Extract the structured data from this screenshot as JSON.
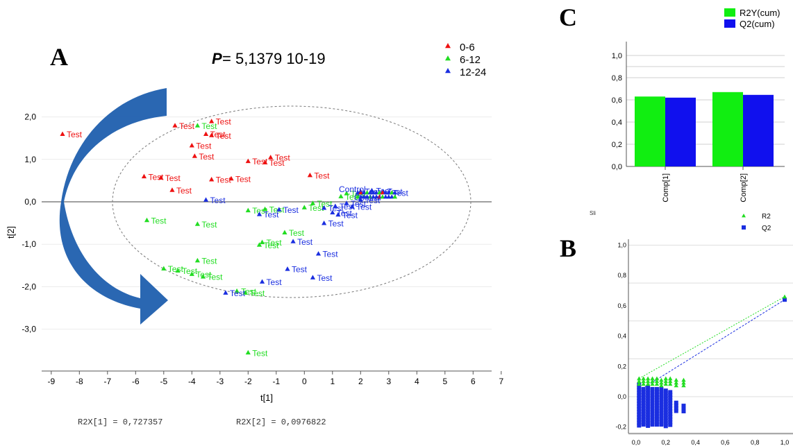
{
  "panels": {
    "A": {
      "letter": "A",
      "p_label": "P",
      "p_value": "= 5,1379 10-19",
      "legend": [
        {
          "label": "0-6",
          "color": "#ee1111"
        },
        {
          "label": "6-12",
          "color": "#22dd22"
        },
        {
          "label": "12-24",
          "color": "#1a2ee0"
        }
      ],
      "xlabel": "t[1]",
      "ylabel": "t[2]",
      "xticks": [
        "-9",
        "-8",
        "-7",
        "-6",
        "-5",
        "-4",
        "-3",
        "-2",
        "-1",
        "0",
        "1",
        "2",
        "3",
        "4",
        "5",
        "6",
        "7"
      ],
      "yticks": [
        "2,0",
        "1,0",
        "0,0",
        "-1,0",
        "-2,0",
        "-3,0"
      ],
      "footer_left": "R2X[1] = 0,727357",
      "footer_right": "R2X[2] = 0,0976822",
      "point_label": "Test",
      "cluster_labels": [
        "Control",
        "Control"
      ]
    },
    "B": {
      "letter": "B",
      "corner": "Sli",
      "legend": [
        {
          "label": "R2",
          "color": "#22dd22"
        },
        {
          "label": "Q2",
          "color": "#1a2ee0"
        }
      ],
      "xticks": [
        "0,0",
        "0,2",
        "0,4",
        "0,6",
        "0,8",
        "1,0"
      ],
      "yticks": [
        "1,0",
        "0,8",
        "0,6",
        "0,4",
        "0,2",
        "0,0",
        "-0,2"
      ]
    },
    "C": {
      "letter": "C",
      "legend": [
        {
          "label": "R2Y(cum)",
          "color": "#11ee11"
        },
        {
          "label": "Q2(cum)",
          "color": "#1010ee"
        }
      ],
      "yticks": [
        "1,0",
        "0,8",
        "0,6",
        "0,4",
        "0,2",
        "0,0"
      ]
    }
  },
  "colors": {
    "g06": "#ee1111",
    "g612": "#22dd22",
    "g1224": "#1a2ee0",
    "arrow": "#1f5fae"
  },
  "chart_data": [
    {
      "type": "scatter",
      "title": "",
      "xlabel": "t[1]",
      "ylabel": "t[2]",
      "xlim": [
        -9.5,
        7.5
      ],
      "ylim": [
        -3.8,
        2.3
      ],
      "series": [
        {
          "name": "0-6",
          "color": "#ee1111",
          "points": [
            [
              -8.6,
              1.6
            ],
            [
              -4.6,
              1.8
            ],
            [
              -3.3,
              1.9
            ],
            [
              -3.5,
              1.6
            ],
            [
              -3.3,
              1.57
            ],
            [
              -4.0,
              1.33
            ],
            [
              -3.9,
              1.08
            ],
            [
              -2.0,
              0.96
            ],
            [
              -1.4,
              0.93
            ],
            [
              -1.2,
              1.05
            ],
            [
              0.2,
              0.63
            ],
            [
              -5.7,
              0.6
            ],
            [
              -5.1,
              0.57
            ],
            [
              -3.3,
              0.53
            ],
            [
              -2.6,
              0.55
            ],
            [
              -4.7,
              0.28
            ]
          ]
        },
        {
          "name": "6-12",
          "color": "#22dd22",
          "points": [
            [
              -3.8,
              1.8
            ],
            [
              -5.6,
              -0.43
            ],
            [
              -3.8,
              -0.52
            ],
            [
              -2.0,
              -0.2
            ],
            [
              -1.4,
              -0.17
            ],
            [
              -0.7,
              -0.72
            ],
            [
              -1.5,
              -0.95
            ],
            [
              -1.6,
              -1.01
            ],
            [
              0.3,
              -0.03
            ],
            [
              0.0,
              -0.13
            ],
            [
              1.3,
              0.13
            ],
            [
              1.5,
              0.2
            ],
            [
              -3.8,
              -1.38
            ],
            [
              -5.0,
              -1.57
            ],
            [
              -4.5,
              -1.62
            ],
            [
              -4.0,
              -1.7
            ],
            [
              -3.6,
              -1.76
            ],
            [
              -2.4,
              -2.1
            ],
            [
              -2.1,
              -2.14
            ],
            [
              -2.0,
              -3.55
            ]
          ]
        },
        {
          "name": "12-24",
          "color": "#1a2ee0",
          "points": [
            [
              -3.5,
              0.05
            ],
            [
              -1.6,
              -0.29
            ],
            [
              -0.9,
              -0.18
            ],
            [
              0.7,
              -0.14
            ],
            [
              1.1,
              -0.1
            ],
            [
              1.7,
              -0.11
            ],
            [
              1.2,
              -0.3
            ],
            [
              1.0,
              -0.25
            ],
            [
              0.7,
              -0.5
            ],
            [
              1.5,
              -0.03
            ],
            [
              2.0,
              0.05
            ],
            [
              -0.4,
              -0.93
            ],
            [
              0.5,
              -1.22
            ],
            [
              -0.6,
              -1.58
            ],
            [
              0.3,
              -1.78
            ],
            [
              -1.5,
              -1.88
            ],
            [
              -2.8,
              -2.14
            ],
            [
              2.0,
              0.25
            ],
            [
              2.4,
              0.27
            ],
            [
              2.8,
              0.25
            ],
            [
              3.0,
              0.22
            ]
          ]
        }
      ]
    },
    {
      "type": "bar",
      "title": "",
      "categories": [
        "Comp[1]",
        "Comp[2]"
      ],
      "series": [
        {
          "name": "R2Y(cum)",
          "values": [
            0.63,
            0.67
          ]
        },
        {
          "name": "Q2(cum)",
          "values": [
            0.62,
            0.645
          ]
        }
      ],
      "ylim": [
        0,
        1.0
      ]
    },
    {
      "type": "scatter",
      "title": "",
      "xlim": [
        -0.02,
        1.02
      ],
      "ylim": [
        -0.22,
        1.0
      ],
      "series": [
        {
          "name": "R2",
          "x": [
            0.02,
            0.05,
            0.08,
            0.11,
            0.14,
            0.17,
            0.2,
            0.23,
            0.27,
            0.32,
            1.0
          ],
          "y": [
            0.12,
            0.12,
            0.12,
            0.12,
            0.12,
            0.11,
            0.12,
            0.12,
            0.11,
            0.11,
            0.66
          ]
        },
        {
          "name": "Q2",
          "x": [
            0.02,
            0.05,
            0.08,
            0.11,
            0.14,
            0.17,
            0.2,
            0.23,
            0.27,
            0.32,
            1.0
          ],
          "y": [
            0.08,
            0.05,
            0.06,
            0.05,
            0.05,
            0.05,
            0.04,
            0.03,
            -0.04,
            -0.06,
            0.64
          ]
        }
      ]
    }
  ]
}
